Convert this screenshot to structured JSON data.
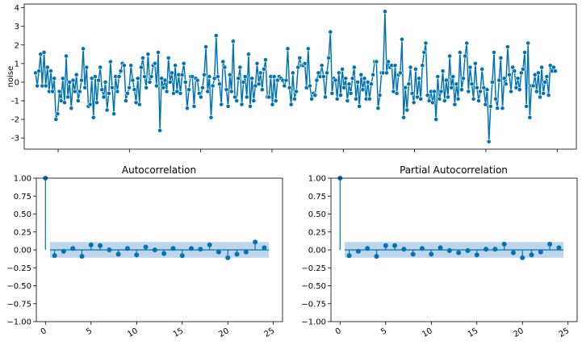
{
  "colors": {
    "line": "#0173b2",
    "band": "#a8c8e6",
    "zero": "#0173b2",
    "axis": "#000000",
    "background": "#ffffff"
  },
  "chart_data": [
    {
      "type": "line",
      "title": "",
      "xlabel": "",
      "ylabel": "noise",
      "ylim": [
        -3.6,
        4.2
      ],
      "yticks": [
        "4",
        "3",
        "2",
        "1",
        "0",
        "-1",
        "-2",
        "-3"
      ],
      "yticks_values": [
        4,
        3,
        2,
        1,
        0,
        -1,
        -2,
        -3
      ],
      "xticks_count": 8,
      "xticks_labels_visible": false,
      "marker": "circle",
      "grid": false,
      "y": [
        0.5,
        -0.2,
        0.6,
        1.5,
        -0.2,
        1.6,
        -0.2,
        0.8,
        -0.5,
        0.6,
        -0.5,
        0.2,
        -2.0,
        -1.7,
        -0.5,
        -1.0,
        0.2,
        -1.1,
        1.4,
        -0.8,
        0.0,
        -1.4,
        0.1,
        -0.5,
        0.4,
        -1.0,
        -0.5,
        0.1,
        1.8,
        -0.3,
        0.8,
        -1.3,
        -1.2,
        0.2,
        -1.9,
        0.3,
        -1.1,
        0.1,
        0.8,
        -0.4,
        -0.8,
        0.0,
        -1.5,
        -0.6,
        1.1,
        -0.3,
        -1.7,
        0.3,
        -0.5,
        0.3,
        0.6,
        1.0,
        0.9,
        -1.0,
        -0.6,
        -0.3,
        0.9,
        0.1,
        -0.4,
        -1.1,
        0.2,
        -1.2,
        0.8,
        1.3,
        0.3,
        -0.3,
        1.5,
        0.0,
        0.3,
        0.9,
        1.0,
        -0.2,
        1.6,
        -2.6,
        0.2,
        -0.3,
        0.1,
        -0.5,
        1.3,
        0.0,
        0.5,
        -0.6,
        0.9,
        -0.5,
        0.4,
        -0.6,
        0.4,
        1.0,
        0.0,
        -1.4,
        -0.4,
        0.3,
        0.3,
        -1.3,
        0.2,
        0.1,
        -0.6,
        -0.8,
        -0.3,
        0.4,
        1.9,
        -0.5,
        0.3,
        -1.9,
        -0.2,
        0.2,
        2.5,
        0.3,
        -0.1,
        -1.2,
        1.1,
        0.8,
        -0.4,
        -1.3,
        0.4,
        -0.5,
        2.2,
        -0.8,
        -1.0,
        0.2,
        0.8,
        -1.2,
        0.0,
        0.3,
        -0.8,
        1.5,
        -1.3,
        0.2,
        -1.0,
        -0.2,
        1.0,
        -0.1,
        0.5,
        -0.4,
        0.7,
        1.2,
        -0.8,
        -0.8,
        0.3,
        -1.2,
        0.3,
        -1.0,
        0.1,
        0.3,
        0.2,
        0.1,
        -0.2,
        0.1,
        1.8,
        -0.3,
        -1.2,
        0.5,
        -0.9,
        -0.5,
        0.8,
        1.3,
        0.9,
        0.9,
        1.0,
        -0.3,
        1.8,
        -0.2,
        -0.9,
        -0.6,
        -0.7,
        0.1,
        0.5,
        0.3,
        0.9,
        0.3,
        -0.8,
        0.5,
        1.3,
        2.7,
        -0.6,
        0.2,
        0.1,
        -0.9,
        0.5,
        -0.7,
        0.7,
        -0.3,
        0.2,
        -1.0,
        -0.1,
        -0.6,
        0.2,
        0.8,
        -0.9,
        0.0,
        -1.3,
        0.4,
        -0.4,
        0.2,
        -0.9,
        0.0,
        -0.9,
        -0.1,
        0.4,
        1.1,
        1.1,
        -1.4,
        -0.7,
        0.5,
        0.5,
        3.8,
        0.5,
        1.1,
        0.8,
        0.9,
        -0.5,
        0.9,
        -0.6,
        0.4,
        0.5,
        2.3,
        -1.9,
        -0.3,
        -1.5,
        -0.1,
        0.8,
        -0.6,
        -1.1,
        0.7,
        -0.8,
        0.2,
        -0.9,
        0.9,
        1.6,
        2.1,
        -0.7,
        -1.0,
        -0.5,
        -1.1,
        -0.5,
        -2.0,
        0.3,
        -0.9,
        -0.5,
        0.6,
        -1.0,
        0.1,
        -0.8,
        1.4,
        -0.3,
        0.3,
        -1.2,
        -0.1,
        -0.9,
        1.6,
        -0.4,
        0.2,
        1.4,
        2.1,
        -0.5,
        0.8,
        -0.1,
        -0.9,
        1.0,
        -0.3,
        -1.0,
        -0.5,
        0.7,
        -0.3,
        -1.2,
        -0.4,
        -3.2,
        -1.3,
        0.0,
        1.6,
        -0.9,
        -1.4,
        0.1,
        1.3,
        -1.4,
        0.2,
        -0.1,
        1.9,
        0.4,
        -0.5,
        0.8,
        0.6,
        -0.3,
        0.2,
        -0.4,
        0.5,
        0.7,
        1.6,
        -1.3,
        2.1,
        -1.9,
        -0.2,
        -0.2,
        0.4,
        -0.5,
        0.5,
        -0.8,
        0.8,
        -0.6,
        0.0,
        0.3,
        -0.7,
        0.9,
        0.6,
        0.8,
        0.6
      ]
    },
    {
      "type": "bar",
      "title": "Autocorrelation",
      "xlabel": "",
      "ylabel": "",
      "ylim": [
        -1.0,
        1.0
      ],
      "xlim": [
        -1,
        26
      ],
      "xticks": [
        "0",
        "5",
        "10",
        "15",
        "20",
        "25"
      ],
      "xticks_values": [
        0,
        5,
        10,
        15,
        20,
        25
      ],
      "yticks": [
        "1.00",
        "0.75",
        "0.50",
        "0.25",
        "0.00",
        "−0.25",
        "−0.50",
        "−0.75",
        "−1.00"
      ],
      "yticks_values": [
        1,
        0.75,
        0.5,
        0.25,
        0,
        -0.25,
        -0.5,
        -0.75,
        -1
      ],
      "confidence_band": 0.11,
      "lags": [
        0,
        1,
        2,
        3,
        4,
        5,
        6,
        7,
        8,
        9,
        10,
        11,
        12,
        13,
        14,
        15,
        16,
        17,
        18,
        19,
        20,
        21,
        22,
        23,
        24
      ],
      "values": [
        1.0,
        -0.08,
        -0.02,
        0.02,
        -0.09,
        0.07,
        0.06,
        0.0,
        -0.06,
        0.02,
        -0.07,
        0.04,
        0.0,
        -0.05,
        0.02,
        -0.08,
        0.02,
        0.01,
        0.07,
        -0.03,
        -0.11,
        -0.06,
        -0.03,
        0.11,
        0.03
      ]
    },
    {
      "type": "bar",
      "title": "Partial Autocorrelation",
      "xlabel": "",
      "ylabel": "",
      "ylim": [
        -1.0,
        1.0
      ],
      "xlim": [
        -1,
        26
      ],
      "xticks": [
        "0",
        "5",
        "10",
        "15",
        "20",
        "25"
      ],
      "xticks_values": [
        0,
        5,
        10,
        15,
        20,
        25
      ],
      "yticks": [
        "1.00",
        "0.75",
        "0.50",
        "0.25",
        "0.00",
        "−0.25",
        "−0.50",
        "−0.75",
        "−1.00"
      ],
      "yticks_values": [
        1,
        0.75,
        0.5,
        0.25,
        0,
        -0.25,
        -0.5,
        -0.75,
        -1
      ],
      "confidence_band": 0.11,
      "lags": [
        0,
        1,
        2,
        3,
        4,
        5,
        6,
        7,
        8,
        9,
        10,
        11,
        12,
        13,
        14,
        15,
        16,
        17,
        18,
        19,
        20,
        21,
        22,
        23,
        24
      ],
      "values": [
        1.0,
        -0.08,
        -0.02,
        0.02,
        -0.09,
        0.06,
        0.06,
        0.01,
        -0.06,
        0.02,
        -0.06,
        0.03,
        -0.01,
        -0.04,
        -0.01,
        -0.07,
        0.01,
        0.01,
        0.08,
        -0.04,
        -0.11,
        -0.07,
        -0.03,
        0.08,
        0.03
      ]
    }
  ]
}
